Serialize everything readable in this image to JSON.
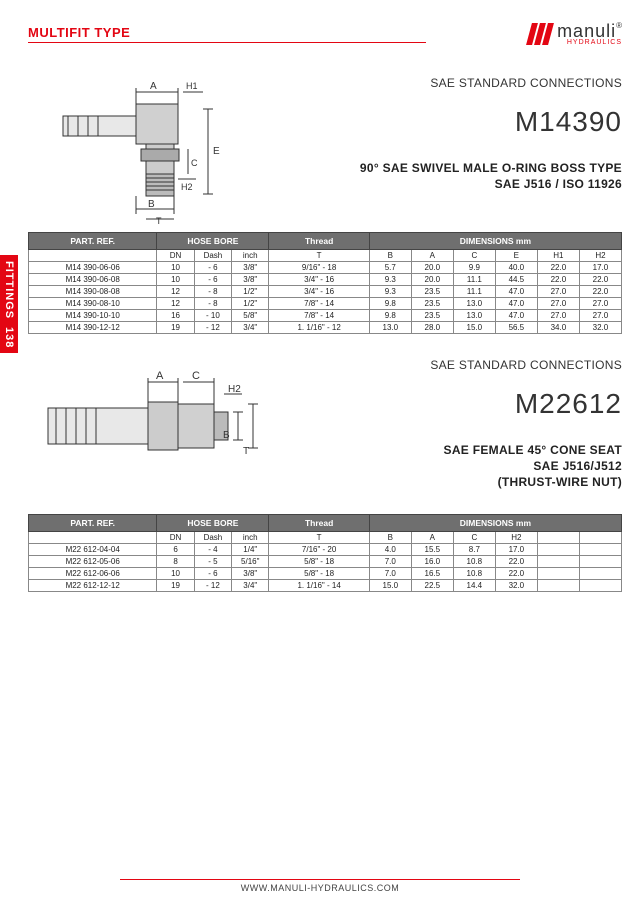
{
  "header": {
    "multifit": "MULTIFIT TYPE",
    "logo_main": "manuli",
    "logo_sub": "HYDRAULICS",
    "reg": "®"
  },
  "side": {
    "label": "FITTINGS",
    "page": "138"
  },
  "footer": {
    "url": "WWW.MANULI-HYDRAULICS.COM"
  },
  "colors": {
    "brand": "#e30613",
    "head": "#6f6f6f",
    "border": "#888"
  },
  "sec1": {
    "category": "SAE STANDARD CONNECTIONS",
    "code": "M14390",
    "desc1": "90° SAE SWIVEL MALE O-RING BOSS TYPE",
    "desc2": "SAE J516 / ISO 11926",
    "diagram": {
      "A": "A",
      "H1": "H1",
      "E": "E",
      "C": "C",
      "H2": "H2",
      "B": "B",
      "T": "T"
    },
    "table": {
      "head1": {
        "part": "PART. REF.",
        "hose": "HOSE BORE",
        "thread": "Thread",
        "dim": "DIMENSIONS mm"
      },
      "cols": [
        "",
        "DN",
        "Dash",
        "inch",
        "T",
        "B",
        "A",
        "C",
        "E",
        "H1",
        "H2"
      ],
      "widths": [
        110,
        32,
        32,
        32,
        86,
        36,
        36,
        36,
        36,
        36,
        36
      ],
      "rows": [
        [
          "M14 390-06-06",
          "10",
          "- 6",
          "3/8\"",
          "9/16\" - 18",
          "5.7",
          "20.0",
          "9.9",
          "40.0",
          "22.0",
          "17.0"
        ],
        [
          "M14 390-06-08",
          "10",
          "- 6",
          "3/8\"",
          "3/4\" - 16",
          "9.3",
          "20.0",
          "11.1",
          "44.5",
          "22.0",
          "22.0"
        ],
        [
          "M14 390-08-08",
          "12",
          "- 8",
          "1/2\"",
          "3/4\" - 16",
          "9.3",
          "23.5",
          "11.1",
          "47.0",
          "27.0",
          "22.0"
        ],
        [
          "M14 390-08-10",
          "12",
          "- 8",
          "1/2\"",
          "7/8\" - 14",
          "9.8",
          "23.5",
          "13.0",
          "47.0",
          "27.0",
          "27.0"
        ],
        [
          "M14 390-10-10",
          "16",
          "- 10",
          "5/8\"",
          "7/8\" - 14",
          "9.8",
          "23.5",
          "13.0",
          "47.0",
          "27.0",
          "27.0"
        ],
        [
          "M14 390-12-12",
          "19",
          "- 12",
          "3/4\"",
          "1. 1/16\" - 12",
          "13.0",
          "28.0",
          "15.0",
          "56.5",
          "34.0",
          "32.0"
        ]
      ]
    }
  },
  "sec2": {
    "category": "SAE STANDARD CONNECTIONS",
    "code": "M22612",
    "desc1": "SAE FEMALE 45° CONE SEAT",
    "desc2": "SAE J516/J512",
    "desc3": "(THRUST-WIRE NUT)",
    "diagram": {
      "A": "A",
      "C": "C",
      "H2": "H2",
      "B": "B",
      "T": "T"
    },
    "table": {
      "head1": {
        "part": "PART. REF.",
        "hose": "HOSE BORE",
        "thread": "Thread",
        "dim": "DIMENSIONS mm"
      },
      "cols": [
        "",
        "DN",
        "Dash",
        "inch",
        "T",
        "B",
        "A",
        "C",
        "H2",
        "",
        ""
      ],
      "widths": [
        110,
        32,
        32,
        32,
        86,
        36,
        36,
        36,
        36,
        36,
        36
      ],
      "rows": [
        [
          "M22 612-04-04",
          "6",
          "- 4",
          "1/4\"",
          "7/16\" - 20",
          "4.0",
          "15.5",
          "8.7",
          "17.0",
          "",
          ""
        ],
        [
          "M22 612-05-06",
          "8",
          "- 5",
          "5/16\"",
          "5/8\" - 18",
          "7.0",
          "16.0",
          "10.8",
          "22.0",
          "",
          ""
        ],
        [
          "M22 612-06-06",
          "10",
          "- 6",
          "3/8\"",
          "5/8\" - 18",
          "7.0",
          "16.5",
          "10.8",
          "22.0",
          "",
          ""
        ],
        [
          "M22 612-12-12",
          "19",
          "- 12",
          "3/4\"",
          "1. 1/16\" - 14",
          "15.0",
          "22.5",
          "14.4",
          "32.0",
          "",
          ""
        ]
      ]
    }
  }
}
